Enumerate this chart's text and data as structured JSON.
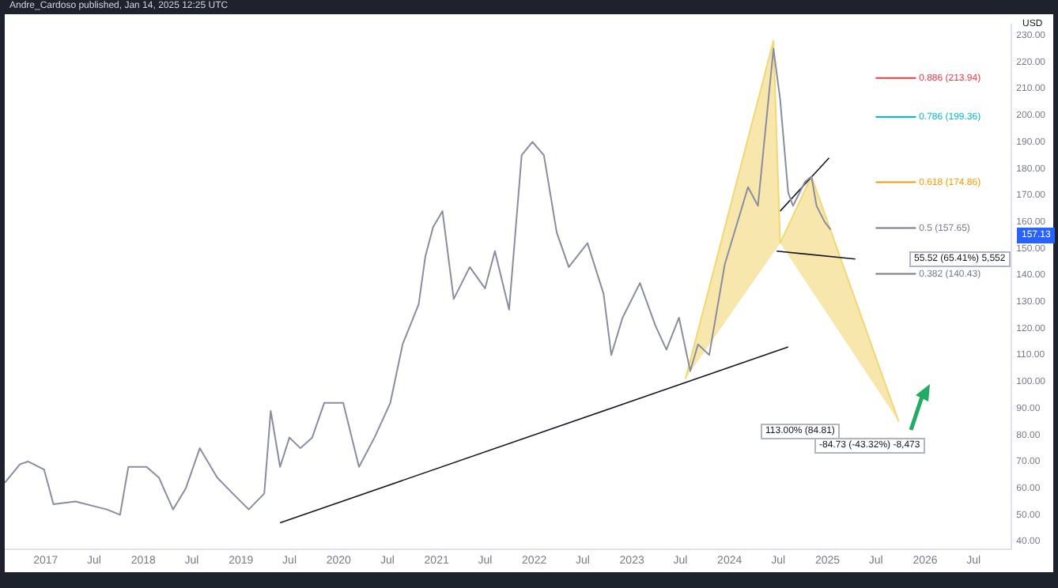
{
  "chart_data": {
    "type": "line",
    "title": "Andre_Cardoso published, Jan 14, 2025 12:25 UTC",
    "ylabel": "USD",
    "xlim": [
      "2016-08-01",
      "2026-11-20"
    ],
    "xticks": [
      {
        "value": "2017-01-01",
        "label": "2017"
      },
      {
        "value": "2017-07-01",
        "label": "Jul"
      },
      {
        "value": "2018-01-01",
        "label": "2018"
      },
      {
        "value": "2018-07-01",
        "label": "Jul"
      },
      {
        "value": "2019-01-01",
        "label": "2019"
      },
      {
        "value": "2019-07-01",
        "label": "Jul"
      },
      {
        "value": "2020-01-01",
        "label": "2020"
      },
      {
        "value": "2020-07-01",
        "label": "Jul"
      },
      {
        "value": "2021-01-01",
        "label": "2021"
      },
      {
        "value": "2021-07-01",
        "label": "Jul"
      },
      {
        "value": "2022-01-01",
        "label": "2022"
      },
      {
        "value": "2022-07-01",
        "label": "Jul"
      },
      {
        "value": "2023-01-01",
        "label": "2023"
      },
      {
        "value": "2023-07-01",
        "label": "Jul"
      },
      {
        "value": "2024-01-01",
        "label": "2024"
      },
      {
        "value": "2024-07-01",
        "label": "Jul"
      },
      {
        "value": "2025-01-01",
        "label": "2025"
      },
      {
        "value": "2025-07-01",
        "label": "Jul"
      },
      {
        "value": "2026-01-01",
        "label": "2026"
      },
      {
        "value": "2026-07-01",
        "label": "Jul"
      }
    ],
    "ylim": [
      37,
      234
    ],
    "yticks": [
      {
        "value": 40,
        "label": "40.00"
      },
      {
        "value": 50,
        "label": "50.00"
      },
      {
        "value": 60,
        "label": "60.00"
      },
      {
        "value": 70,
        "label": "70.00"
      },
      {
        "value": 80,
        "label": "80.00"
      },
      {
        "value": 90,
        "label": "90.00"
      },
      {
        "value": 100,
        "label": "100.00"
      },
      {
        "value": 110,
        "label": "110.00"
      },
      {
        "value": 120,
        "label": "120.00"
      },
      {
        "value": 130,
        "label": "130.00"
      },
      {
        "value": 140,
        "label": "140.00"
      },
      {
        "value": 150,
        "label": "150.00"
      },
      {
        "value": 160,
        "label": "160.00"
      },
      {
        "value": 170,
        "label": "170.00"
      },
      {
        "value": 180,
        "label": "180.00"
      },
      {
        "value": 190,
        "label": "190.00"
      },
      {
        "value": 200,
        "label": "200.00"
      },
      {
        "value": 210,
        "label": "210.00"
      },
      {
        "value": 220,
        "label": "220.00"
      },
      {
        "value": 230,
        "label": "230.00"
      }
    ],
    "grid": false,
    "legend": false,
    "marker": "none",
    "series": [
      {
        "type": "line",
        "color": "#8a8da0",
        "x": [
          "2016-08-01",
          "2016-09-27",
          "2016-10-27",
          "2016-12-26",
          "2017-01-30",
          "2017-04-22",
          "2017-08-18",
          "2017-10-06",
          "2017-11-06",
          "2018-01-13",
          "2018-02-28",
          "2018-04-22",
          "2018-06-09",
          "2018-07-31",
          "2018-10-04",
          "2018-12-01",
          "2019-01-30",
          "2019-03-29",
          "2019-04-22",
          "2019-05-27",
          "2019-07-01",
          "2019-08-11",
          "2019-09-24",
          "2019-11-08",
          "2020-01-18",
          "2020-03-17",
          "2020-05-14",
          "2020-07-12",
          "2020-08-27",
          "2020-10-26",
          "2020-11-20",
          "2020-12-19",
          "2021-01-23",
          "2021-03-06",
          "2021-05-05",
          "2021-07-01",
          "2021-08-07",
          "2021-09-29",
          "2021-11-15",
          "2021-12-25",
          "2022-02-06",
          "2022-03-26",
          "2022-05-10",
          "2022-07-19",
          "2022-09-17",
          "2022-10-16",
          "2022-11-27",
          "2023-01-31",
          "2023-03-30",
          "2023-05-10",
          "2023-06-26",
          "2023-08-07",
          "2023-09-05",
          "2023-10-17",
          "2023-12-14",
          "2024-03-10",
          "2024-04-16",
          "2024-06-13",
          "2024-07-08",
          "2024-08-07",
          "2024-08-25",
          "2024-10-09",
          "2024-11-02",
          "2024-11-21",
          "2024-12-21",
          "2025-01-13"
        ],
        "values": [
          62,
          69,
          70,
          67,
          54,
          55,
          52,
          50,
          68,
          68,
          64,
          52,
          60,
          75,
          64,
          58,
          52,
          58,
          89,
          68,
          79,
          75,
          79,
          92,
          92,
          68,
          79,
          92,
          114,
          129,
          147,
          158,
          164,
          131,
          143,
          135,
          149,
          127,
          185,
          190,
          185,
          156,
          143,
          152,
          133,
          110,
          124,
          137,
          121,
          112,
          124,
          104,
          114,
          110,
          144,
          173,
          166,
          225,
          206,
          171,
          166,
          175,
          177,
          166,
          160,
          157
        ]
      },
      {
        "type": "line",
        "color": "#131722",
        "x": [
          "2019-05-27",
          "2024-08-07"
        ],
        "values": [
          47,
          113
        ]
      },
      {
        "type": "line",
        "color": "#131722",
        "x": [
          "2024-07-08",
          "2025-01-07"
        ],
        "values": [
          164,
          184
        ]
      },
      {
        "type": "line",
        "color": "#131722",
        "x": [
          "2024-06-25",
          "2025-04-15"
        ],
        "values": [
          149,
          146
        ]
      },
      {
        "type": "area",
        "color": "#f2d775",
        "x": [
          "2023-07-20",
          "2024-06-13",
          "2024-07-08"
        ],
        "values": [
          101,
          228,
          152
        ]
      },
      {
        "type": "area",
        "color": "#f2d775",
        "x": [
          "2024-07-08",
          "2024-11-02",
          "2025-09-24"
        ],
        "values": [
          152,
          177,
          85
        ]
      }
    ],
    "ref_lines": [
      {
        "axis": "y",
        "value": 213.94,
        "label": "0.886 (213.94)",
        "color": "#f23645"
      },
      {
        "axis": "y",
        "value": 199.36,
        "label": "0.786 (199.36)",
        "color": "#00bcd4"
      },
      {
        "axis": "y",
        "value": 174.86,
        "label": "0.618 (174.86)",
        "color": "#ff9800"
      },
      {
        "axis": "y",
        "value": 157.65,
        "label": "0.5 (157.65)",
        "color": "#787b86"
      },
      {
        "axis": "y",
        "value": 140.43,
        "label": "0.382 (140.43)",
        "color": "#787b86"
      }
    ],
    "annotations": [
      "55.52 (65.41%) 5,552",
      "113.00% (84.81)",
      "-84.73 (-43.32%) -8,473",
      "157.13"
    ]
  }
}
